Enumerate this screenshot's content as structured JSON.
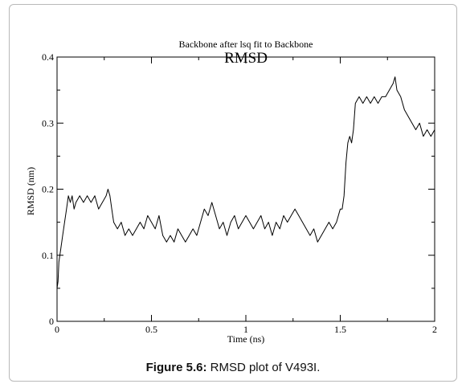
{
  "chart_data": {
    "type": "line",
    "title": "RMSD",
    "subtitle": "Backbone after lsq fit to Backbone",
    "xlabel": "Time (ns)",
    "ylabel": "RMSD (nm)",
    "xlim": [
      0,
      2
    ],
    "ylim": [
      0,
      0.4
    ],
    "x_ticks": [
      "0",
      "0.5",
      "1",
      "1.5",
      "2"
    ],
    "y_ticks": [
      "0",
      "0.1",
      "0.2",
      "0.3",
      "0.4"
    ],
    "grid": false,
    "legend": "none",
    "series": [
      {
        "color": "#000000",
        "x": [
          0,
          0.005,
          0.01,
          0.02,
          0.03,
          0.04,
          0.05,
          0.06,
          0.07,
          0.08,
          0.09,
          0.1,
          0.12,
          0.14,
          0.16,
          0.18,
          0.2,
          0.22,
          0.24,
          0.26,
          0.27,
          0.28,
          0.29,
          0.3,
          0.32,
          0.34,
          0.36,
          0.38,
          0.4,
          0.42,
          0.44,
          0.46,
          0.48,
          0.5,
          0.52,
          0.54,
          0.56,
          0.58,
          0.6,
          0.62,
          0.64,
          0.66,
          0.68,
          0.7,
          0.72,
          0.74,
          0.76,
          0.78,
          0.8,
          0.82,
          0.84,
          0.86,
          0.88,
          0.9,
          0.92,
          0.94,
          0.96,
          0.98,
          1.0,
          1.02,
          1.04,
          1.06,
          1.08,
          1.1,
          1.12,
          1.14,
          1.16,
          1.18,
          1.2,
          1.22,
          1.24,
          1.26,
          1.28,
          1.3,
          1.32,
          1.34,
          1.36,
          1.38,
          1.4,
          1.42,
          1.44,
          1.46,
          1.48,
          1.5,
          1.51,
          1.52,
          1.53,
          1.54,
          1.55,
          1.56,
          1.57,
          1.58,
          1.6,
          1.62,
          1.64,
          1.66,
          1.68,
          1.7,
          1.72,
          1.74,
          1.76,
          1.78,
          1.79,
          1.8,
          1.82,
          1.84,
          1.86,
          1.88,
          1.9,
          1.92,
          1.94,
          1.96,
          1.98,
          2.0
        ],
        "y": [
          0.05,
          0.06,
          0.09,
          0.11,
          0.13,
          0.15,
          0.17,
          0.19,
          0.18,
          0.19,
          0.17,
          0.18,
          0.19,
          0.18,
          0.19,
          0.18,
          0.19,
          0.17,
          0.18,
          0.19,
          0.2,
          0.19,
          0.17,
          0.15,
          0.14,
          0.15,
          0.13,
          0.14,
          0.13,
          0.14,
          0.15,
          0.14,
          0.16,
          0.15,
          0.14,
          0.16,
          0.13,
          0.12,
          0.13,
          0.12,
          0.14,
          0.13,
          0.12,
          0.13,
          0.14,
          0.13,
          0.15,
          0.17,
          0.16,
          0.18,
          0.16,
          0.14,
          0.15,
          0.13,
          0.15,
          0.16,
          0.14,
          0.15,
          0.16,
          0.15,
          0.14,
          0.15,
          0.16,
          0.14,
          0.15,
          0.13,
          0.15,
          0.14,
          0.16,
          0.15,
          0.16,
          0.17,
          0.16,
          0.15,
          0.14,
          0.13,
          0.14,
          0.12,
          0.13,
          0.14,
          0.15,
          0.14,
          0.15,
          0.17,
          0.17,
          0.19,
          0.24,
          0.27,
          0.28,
          0.27,
          0.29,
          0.33,
          0.34,
          0.33,
          0.34,
          0.33,
          0.34,
          0.33,
          0.34,
          0.34,
          0.35,
          0.36,
          0.37,
          0.35,
          0.34,
          0.32,
          0.31,
          0.3,
          0.29,
          0.3,
          0.28,
          0.29,
          0.28,
          0.29
        ]
      }
    ]
  },
  "caption": {
    "label": "Figure 5.6:",
    "text": " RMSD plot of V493I."
  }
}
